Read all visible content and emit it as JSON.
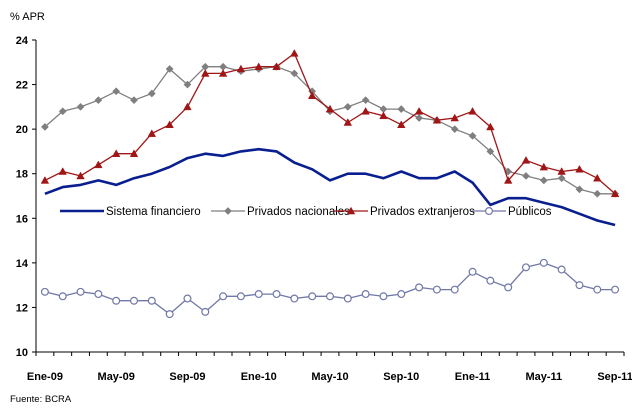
{
  "chart_data": {
    "type": "line",
    "unit_label": "% APR",
    "source": "Fuente: BCRA",
    "ylim": [
      10,
      24
    ],
    "y_ticks": [
      "10",
      "12",
      "14",
      "16",
      "18",
      "20",
      "22",
      "24"
    ],
    "x_tick_labels": [
      "Ene-09",
      "May-09",
      "Sep-09",
      "Ene-10",
      "May-10",
      "Sep-10",
      "Ene-11",
      "May-11",
      "Sep-11"
    ],
    "x": [
      "Ene-09",
      "Feb-09",
      "Mar-09",
      "Abr-09",
      "May-09",
      "Jun-09",
      "Jul-09",
      "Ago-09",
      "Sep-09",
      "Oct-09",
      "Nov-09",
      "Dic-09",
      "Ene-10",
      "Feb-10",
      "Mar-10",
      "Abr-10",
      "May-10",
      "Jun-10",
      "Jul-10",
      "Ago-10",
      "Sep-10",
      "Oct-10",
      "Nov-10",
      "Dic-10",
      "Ene-11",
      "Feb-11",
      "Mar-11",
      "Abr-11",
      "May-11",
      "Jun-11",
      "Jul-11",
      "Ago-11",
      "Sep-11"
    ],
    "grid": false,
    "legend_position": "middle",
    "series": [
      {
        "name": "Sistema financiero",
        "color": "#0a1f8f",
        "marker": "none",
        "values": [
          17.1,
          17.4,
          17.5,
          17.7,
          17.5,
          17.8,
          18.0,
          18.3,
          18.7,
          18.9,
          18.8,
          19.0,
          19.1,
          19.0,
          18.5,
          18.2,
          17.7,
          18.0,
          18.0,
          17.8,
          18.1,
          17.8,
          17.8,
          18.1,
          17.6,
          16.6,
          16.9,
          16.9,
          16.7,
          16.5,
          16.2,
          15.9,
          15.7
        ]
      },
      {
        "name": "Privados nacionales",
        "color": "#7f7f7f",
        "marker": "diamond",
        "values": [
          20.1,
          20.8,
          21.0,
          21.3,
          21.7,
          21.3,
          21.6,
          22.7,
          22.0,
          22.8,
          22.8,
          22.6,
          22.7,
          22.8,
          22.5,
          21.7,
          20.8,
          21.0,
          21.3,
          20.9,
          20.9,
          20.5,
          20.4,
          20.0,
          19.7,
          19.0,
          18.1,
          17.9,
          17.7,
          17.8,
          17.3,
          17.1,
          17.1
        ]
      },
      {
        "name": "Privados extranjeros",
        "color": "#a01616",
        "marker": "triangle",
        "values": [
          17.7,
          18.1,
          17.9,
          18.4,
          18.9,
          18.9,
          19.8,
          20.2,
          21.0,
          22.5,
          22.5,
          22.7,
          22.8,
          22.8,
          23.4,
          21.5,
          20.9,
          20.3,
          20.8,
          20.6,
          20.2,
          20.8,
          20.4,
          20.5,
          20.8,
          20.1,
          17.7,
          18.6,
          18.3,
          18.1,
          18.2,
          17.8,
          17.1
        ]
      },
      {
        "name": "Públicos",
        "color": "#7078a8",
        "marker": "circle",
        "values": [
          12.7,
          12.5,
          12.7,
          12.6,
          12.3,
          12.3,
          12.3,
          11.7,
          12.4,
          11.8,
          12.5,
          12.5,
          12.6,
          12.6,
          12.4,
          12.5,
          12.5,
          12.4,
          12.6,
          12.5,
          12.6,
          12.9,
          12.8,
          12.8,
          13.6,
          13.2,
          12.9,
          13.8,
          14.0,
          13.7,
          13.0,
          12.8,
          12.8
        ]
      }
    ]
  }
}
